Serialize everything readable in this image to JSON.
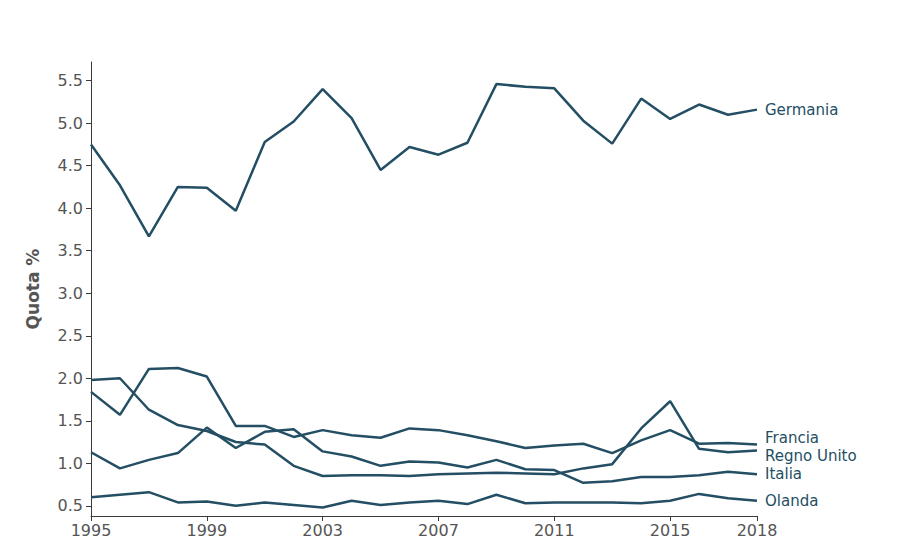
{
  "chart_data": {
    "type": "line",
    "y_label": "Quota %",
    "x": [
      1995,
      1996,
      1997,
      1998,
      1999,
      2000,
      2001,
      2002,
      2003,
      2004,
      2005,
      2006,
      2007,
      2008,
      2009,
      2010,
      2011,
      2012,
      2013,
      2014,
      2015,
      2016,
      2017,
      2018
    ],
    "series": [
      {
        "name": "Germania",
        "color": "#234e63",
        "values": [
          4.75,
          4.27,
          3.67,
          4.25,
          4.24,
          3.97,
          4.78,
          5.02,
          5.4,
          5.06,
          4.45,
          4.72,
          4.63,
          4.77,
          5.46,
          5.43,
          5.41,
          5.03,
          4.76,
          5.29,
          5.05,
          5.22,
          5.1,
          5.16
        ]
      },
      {
        "name": "Francia",
        "color": "#234e63",
        "values": [
          1.84,
          1.57,
          2.11,
          2.12,
          2.02,
          1.44,
          1.44,
          1.31,
          1.39,
          1.33,
          1.3,
          1.41,
          1.39,
          1.33,
          1.26,
          1.18,
          1.21,
          1.23,
          1.12,
          1.27,
          1.39,
          1.23,
          1.24,
          1.22
        ]
      },
      {
        "name": "Regno Unito",
        "color": "#234e63",
        "values": [
          1.98,
          2.0,
          1.63,
          1.45,
          1.38,
          1.25,
          1.22,
          0.97,
          0.85,
          0.86,
          0.86,
          0.85,
          0.87,
          0.88,
          0.89,
          0.88,
          0.87,
          0.94,
          0.99,
          1.41,
          1.73,
          1.17,
          1.13,
          1.15
        ]
      },
      {
        "name": "Italia",
        "color": "#234e63",
        "values": [
          1.13,
          0.94,
          1.04,
          1.12,
          1.42,
          1.18,
          1.37,
          1.4,
          1.14,
          1.08,
          0.97,
          1.02,
          1.01,
          0.95,
          1.04,
          0.93,
          0.92,
          0.77,
          0.79,
          0.84,
          0.84,
          0.86,
          0.9,
          0.87
        ]
      },
      {
        "name": "Olanda",
        "color": "#234e63",
        "values": [
          0.6,
          0.63,
          0.66,
          0.54,
          0.55,
          0.5,
          0.54,
          0.51,
          0.48,
          0.56,
          0.51,
          0.54,
          0.56,
          0.52,
          0.63,
          0.53,
          0.54,
          0.54,
          0.54,
          0.53,
          0.56,
          0.64,
          0.59,
          0.56
        ]
      }
    ],
    "xlim": [
      1995,
      2018
    ],
    "xticks": [
      1995,
      1999,
      2003,
      2007,
      2011,
      2015,
      2018
    ],
    "ylim": [
      0.38,
      5.72
    ],
    "yticks": [
      0.5,
      {
        "value": 1,
        "label": "1.0"
      },
      1.5,
      {
        "value": 2,
        "label": "2.0"
      },
      2.5,
      {
        "value": 3,
        "label": "3.0"
      },
      3.5,
      {
        "value": 4,
        "label": "4.0"
      },
      4.5,
      {
        "value": 5,
        "label": "5.0"
      },
      5.5
    ],
    "grid": false
  }
}
